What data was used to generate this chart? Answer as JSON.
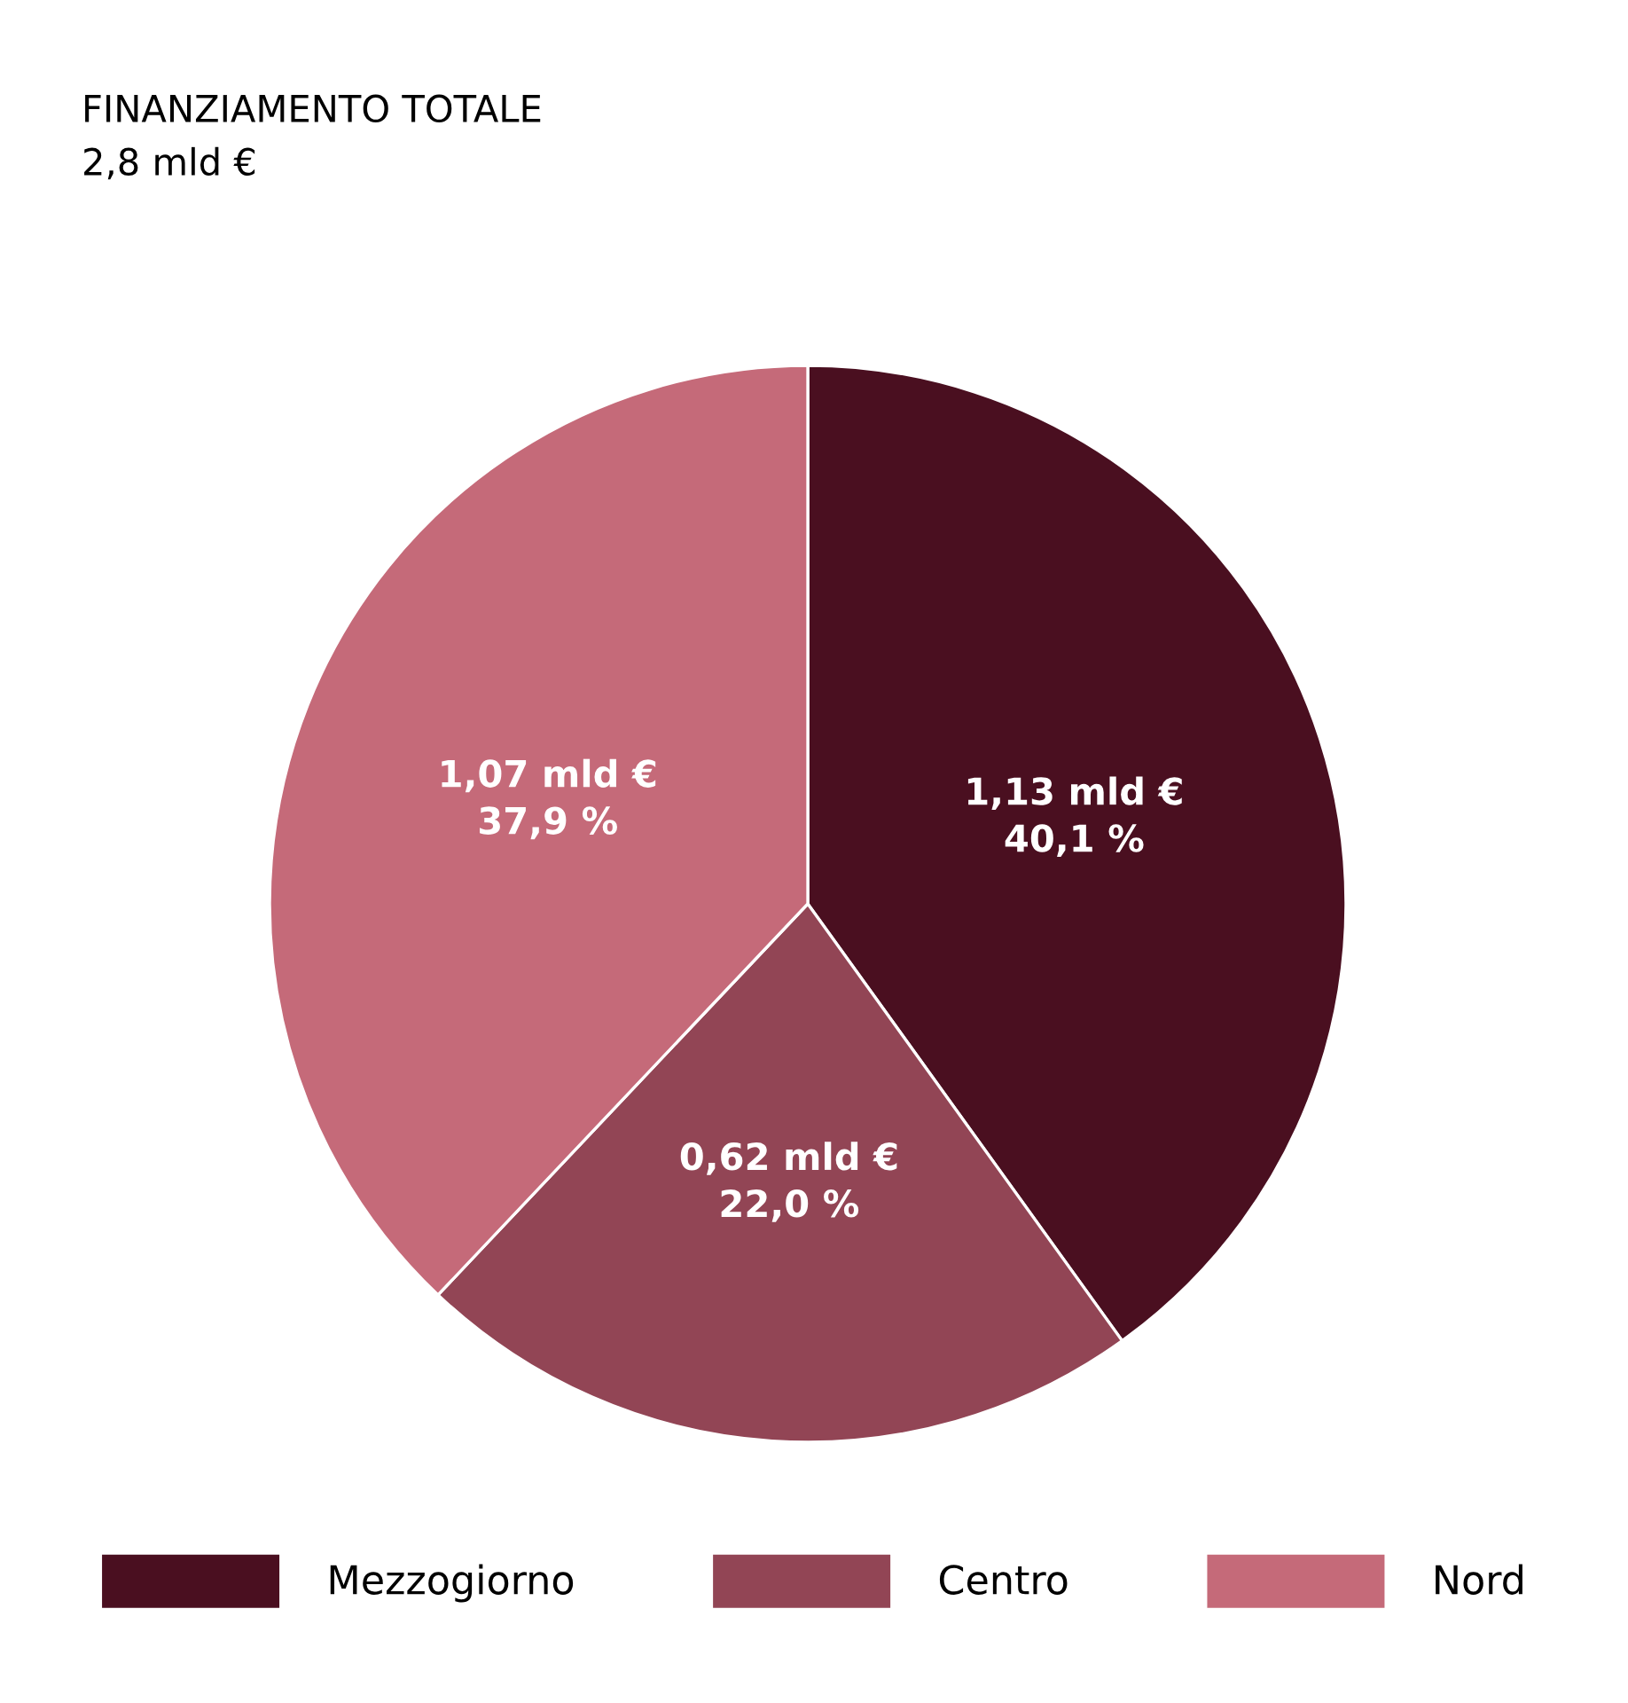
{
  "chart_data": {
    "type": "pie",
    "title": "FINANZIAMENTO TOTALE",
    "subtitle": "2,8 mld €",
    "categories": [
      "Mezzogiorno",
      "Centro",
      "Nord"
    ],
    "values": [
      1.13,
      0.62,
      1.07
    ],
    "value_labels": [
      "1,13 mld €\n40,1 %",
      "0,62 mld €\n22,0 %",
      "1,07 mld €\n37,9 %"
    ],
    "colors": [
      "#4a0f20",
      "#924555",
      "#c56a79"
    ],
    "legend": "bottom"
  }
}
